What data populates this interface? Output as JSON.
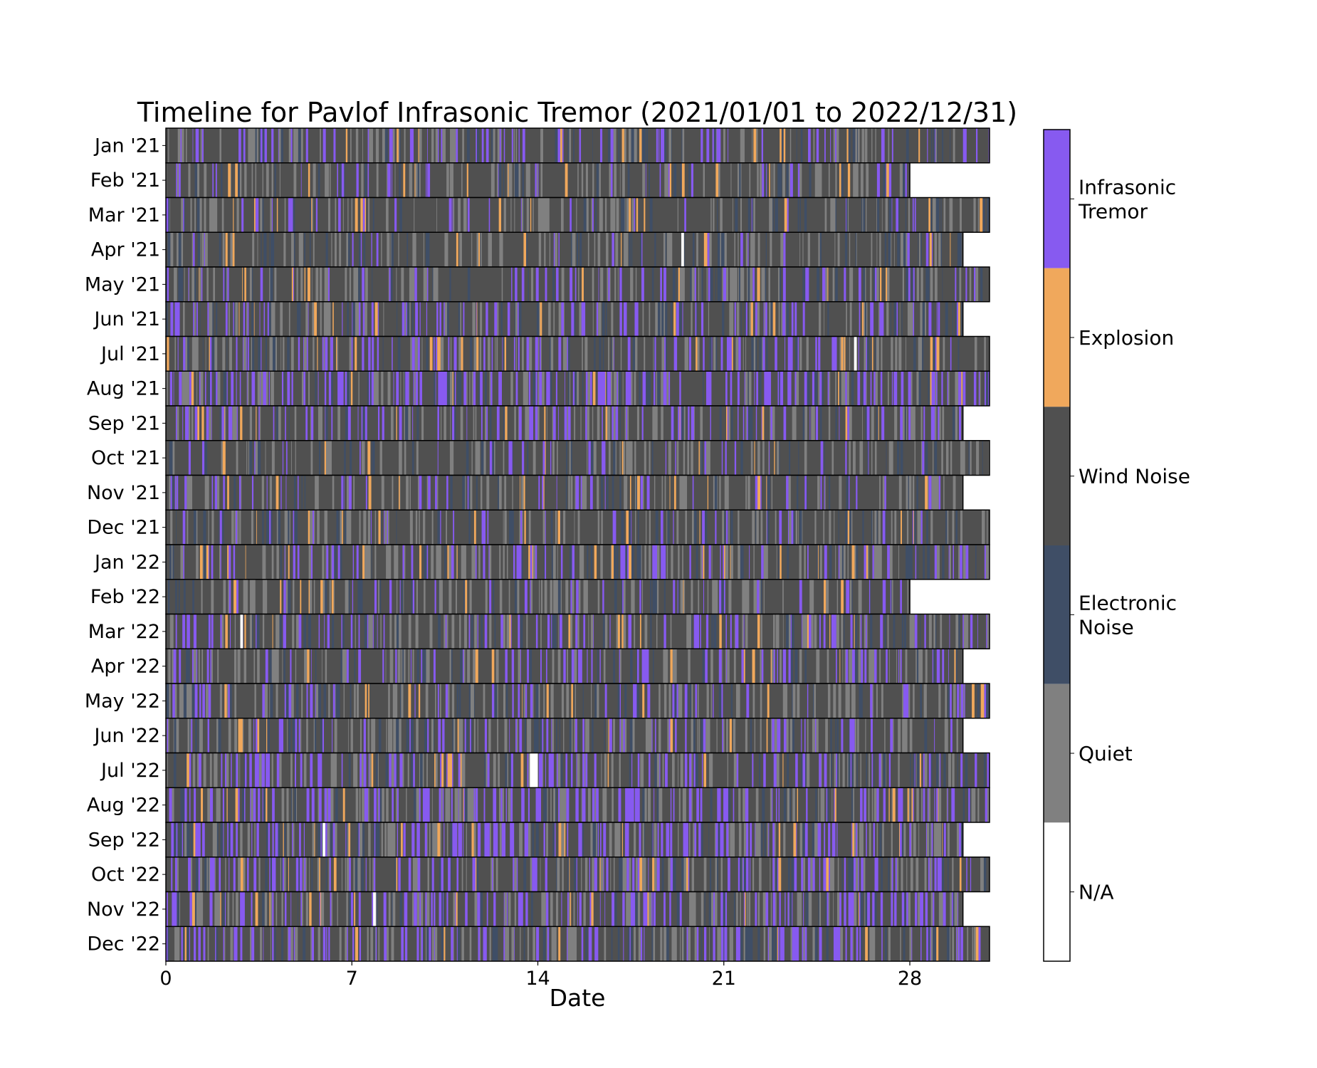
{
  "chart_data": {
    "type": "heatmap",
    "title": "Timeline for Pavlof Infrasonic Tremor (2021/01/01 to 2022/12/31)",
    "xlabel": "Date",
    "ylabel": "",
    "xlim": [
      0,
      31
    ],
    "xticks": [
      0,
      7,
      14,
      21,
      28
    ],
    "rows": [
      {
        "label": "Jan '21",
        "days": 31
      },
      {
        "label": "Feb '21",
        "days": 28
      },
      {
        "label": "Mar '21",
        "days": 31
      },
      {
        "label": "Apr '21",
        "days": 30
      },
      {
        "label": "May '21",
        "days": 31
      },
      {
        "label": "Jun '21",
        "days": 30
      },
      {
        "label": "Jul '21",
        "days": 31
      },
      {
        "label": "Aug '21",
        "days": 31
      },
      {
        "label": "Sep '21",
        "days": 30
      },
      {
        "label": "Oct '21",
        "days": 31
      },
      {
        "label": "Nov '21",
        "days": 30
      },
      {
        "label": "Dec '21",
        "days": 31
      },
      {
        "label": "Jan '22",
        "days": 31
      },
      {
        "label": "Feb '22",
        "days": 28
      },
      {
        "label": "Mar '22",
        "days": 31
      },
      {
        "label": "Apr '22",
        "days": 30
      },
      {
        "label": "May '22",
        "days": 31
      },
      {
        "label": "Jun '22",
        "days": 30
      },
      {
        "label": "Jul '22",
        "days": 31
      },
      {
        "label": "Aug '22",
        "days": 31
      },
      {
        "label": "Sep '22",
        "days": 30
      },
      {
        "label": "Oct '22",
        "days": 31
      },
      {
        "label": "Nov '22",
        "days": 30
      },
      {
        "label": "Dec '22",
        "days": 31
      }
    ],
    "classes": [
      {
        "name": "Infrasonic Tremor",
        "color": "#875af0"
      },
      {
        "name": "Explosion",
        "color": "#f0a85c"
      },
      {
        "name": "Wind Noise",
        "color": "#505050"
      },
      {
        "name": "Electronic Noise",
        "color": "#3f4e66"
      },
      {
        "name": "Quiet",
        "color": "#808080"
      },
      {
        "name": "N/A",
        "color": "#ffffff"
      }
    ],
    "colorbar_labels": [
      "Infrasonic\nTremor",
      "Explosion",
      "Wind Noise",
      "Electronic\nNoise",
      "Quiet",
      "N/A"
    ],
    "colorbar_placement": "right",
    "tremor_share_by_month": [
      0.12,
      0.06,
      0.05,
      0.06,
      0.1,
      0.14,
      0.16,
      0.22,
      0.14,
      0.06,
      0.09,
      0.08,
      0.14,
      0.08,
      0.16,
      0.14,
      0.1,
      0.16,
      0.18,
      0.2,
      0.2,
      0.18,
      0.22,
      0.18
    ],
    "na_periods": [
      {
        "row": "Apr '21",
        "start_day": 19.4,
        "end_day": 19.5
      },
      {
        "row": "Jul '21",
        "start_day": 25.9,
        "end_day": 26.0
      },
      {
        "row": "Mar '22",
        "start_day": 2.8,
        "end_day": 2.9
      },
      {
        "row": "Jul '22",
        "start_day": 13.7,
        "end_day": 14.0
      },
      {
        "row": "Sep '22",
        "start_day": 5.9,
        "end_day": 6.0
      },
      {
        "row": "Nov '22",
        "start_day": 7.8,
        "end_day": 7.9
      }
    ],
    "grid": false
  }
}
